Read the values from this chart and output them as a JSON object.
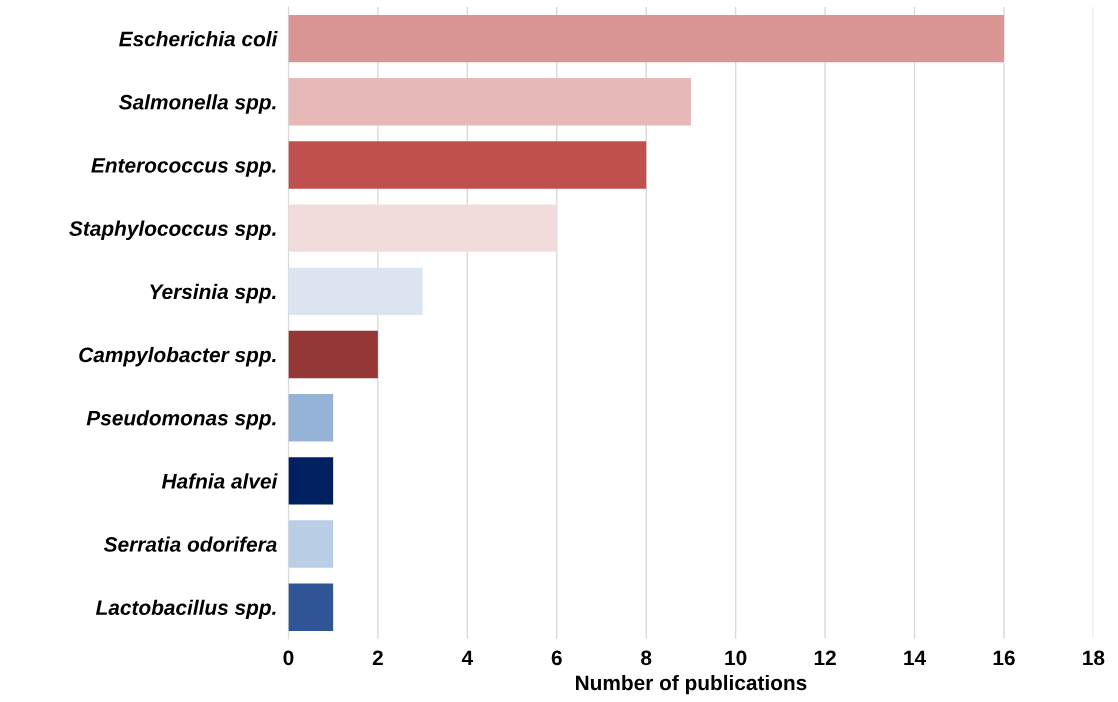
{
  "chart_data": {
    "type": "bar",
    "orientation": "horizontal",
    "xlabel": "Number of publications",
    "categories": [
      "Escherichia coli",
      "Salmonella spp.",
      "Enterococcus spp.",
      "Staphylococcus spp.",
      "Yersinia spp.",
      "Campylobacter spp.",
      "Pseudomonas spp.",
      "Hafnia alvei",
      "Serratia odorifera",
      "Lactobacillus spp."
    ],
    "values": [
      16,
      9,
      8,
      6,
      3,
      2,
      1,
      1,
      1,
      1
    ],
    "colors": [
      "#d99594",
      "#e6b8b7",
      "#c0504d",
      "#f2dcdb",
      "#dbe5f1",
      "#953735",
      "#95b3d7",
      "#002060",
      "#b9cde5",
      "#2f5597"
    ],
    "xlim": [
      0,
      18
    ],
    "xticks": [
      0,
      2,
      4,
      6,
      8,
      10,
      12,
      14,
      16,
      18
    ],
    "grid": "x",
    "legend": false
  }
}
